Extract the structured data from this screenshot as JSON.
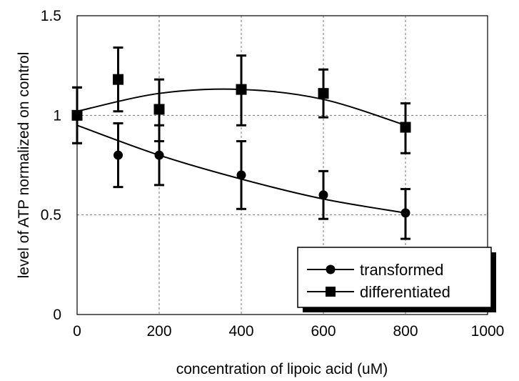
{
  "chart_data": {
    "type": "scatter",
    "title": "",
    "xlabel": "concentration of lipoic acid (uM)",
    "ylabel": "level of ATP normalized on control",
    "xlim": [
      0,
      1000
    ],
    "ylim": [
      0,
      1.5
    ],
    "x_ticks": [
      0,
      200,
      400,
      600,
      800,
      1000
    ],
    "x_tick_labels": [
      "0",
      "200",
      "400",
      "600",
      "800",
      "1000"
    ],
    "y_ticks": [
      0,
      0.5,
      1,
      1.5
    ],
    "y_tick_labels": [
      "0",
      "0.5",
      "1",
      "1.5"
    ],
    "grid": true,
    "legend_position": "bottom-right",
    "series": [
      {
        "name": "transformed",
        "marker": "circle",
        "x": [
          0,
          100,
          200,
          400,
          600,
          800
        ],
        "y": [
          1.0,
          0.8,
          0.8,
          0.7,
          0.6,
          0.51
        ],
        "err_low": [
          0.86,
          0.64,
          0.65,
          0.53,
          0.48,
          0.38
        ],
        "err_high": [
          1.14,
          0.96,
          0.95,
          0.87,
          0.72,
          0.63
        ],
        "trend": {
          "type": "polynomial",
          "x": [
            0,
            200,
            400,
            600,
            800
          ],
          "y": [
            0.95,
            0.8,
            0.68,
            0.58,
            0.51
          ]
        }
      },
      {
        "name": "differentiated",
        "marker": "square",
        "x": [
          0,
          100,
          200,
          400,
          600,
          800
        ],
        "y": [
          1.0,
          1.18,
          1.03,
          1.13,
          1.11,
          0.94
        ],
        "err_low": [
          0.86,
          1.02,
          0.87,
          0.95,
          0.99,
          0.81
        ],
        "err_high": [
          1.14,
          1.34,
          1.18,
          1.3,
          1.23,
          1.06
        ],
        "trend": {
          "type": "polynomial",
          "x": [
            0,
            200,
            400,
            600,
            800
          ],
          "y": [
            1.02,
            1.11,
            1.13,
            1.08,
            0.95
          ]
        }
      }
    ],
    "colors": {
      "series": "#000000",
      "grid": "#777777",
      "background": "#ffffff"
    }
  }
}
